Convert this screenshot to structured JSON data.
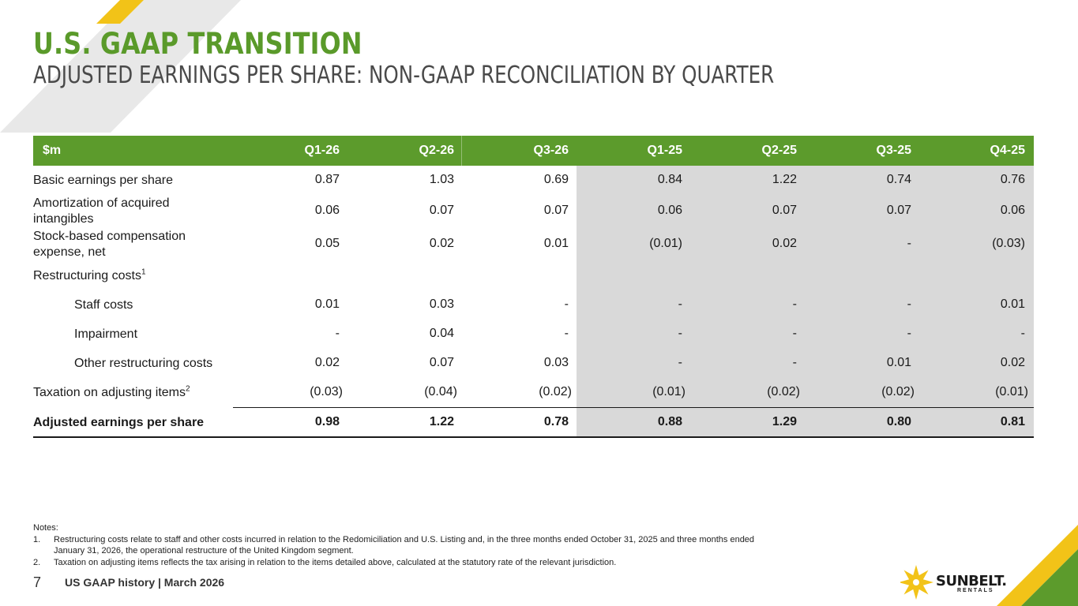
{
  "header": {
    "title": "U.S. GAAP TRANSITION",
    "subtitle": "ADJUSTED EARNINGS PER SHARE: NON-GAAP RECONCILIATION BY QUARTER"
  },
  "colors": {
    "accent_green": "#5c9b2c",
    "title_green": "#5a9a2a",
    "accent_yellow": "#f2c318",
    "shade_gray": "#d9d9d9"
  },
  "table": {
    "columns": [
      "$m",
      "Q1-26",
      "Q2-26",
      "Q3-26",
      "Q1-25",
      "Q2-25",
      "Q3-25",
      "Q4-25"
    ],
    "rows": [
      {
        "label": "Basic earnings per share",
        "values": [
          "0.87",
          "1.03",
          "0.69",
          "0.84",
          "1.22",
          "0.74",
          "0.76"
        ]
      },
      {
        "label_line1": "Amortization of acquired",
        "label_line2": "intangibles",
        "values": [
          "0.06",
          "0.07",
          "0.07",
          "0.06",
          "0.07",
          "0.07",
          "0.06"
        ]
      },
      {
        "label_line1": "Stock-based compensation",
        "label_line2": "expense, net",
        "values": [
          "0.05",
          "0.02",
          "0.01",
          "(0.01)",
          "0.02",
          "-",
          "(0.03)"
        ]
      },
      {
        "label": "Restructuring costs",
        "sup": "1",
        "values": [
          "",
          "",
          "",
          "",
          "",
          "",
          ""
        ]
      },
      {
        "label": "Staff costs",
        "values": [
          "0.01",
          "0.03",
          "-",
          "-",
          "-",
          "-",
          "0.01"
        ]
      },
      {
        "label": "Impairment",
        "values": [
          "-",
          "0.04",
          "-",
          "-",
          "-",
          "-",
          "-"
        ]
      },
      {
        "label": "Other restructuring costs",
        "values": [
          "0.02",
          "0.07",
          "0.03",
          "-",
          "-",
          "0.01",
          "0.02"
        ]
      },
      {
        "label": "Taxation on adjusting items",
        "sup": "2",
        "values": [
          "(0.03)",
          "(0.04)",
          "(0.02)",
          "(0.01)",
          "(0.02)",
          "(0.02)",
          "(0.01)"
        ]
      },
      {
        "label": "Adjusted earnings per share",
        "values": [
          "0.98",
          "1.22",
          "0.78",
          "0.88",
          "1.29",
          "0.80",
          "0.81"
        ]
      }
    ]
  },
  "notes": {
    "heading": "Notes:",
    "items": [
      {
        "num": "1.",
        "line1": "Restructuring costs relate to staff and other costs incurred in relation to the Redomiciliation and U.S. Listing and, in the three months ended October 31, 2025 and three months ended",
        "line2": "January 31, 2026, the operational restructure of the United Kingdom segment."
      },
      {
        "num": "2.",
        "line1": "Taxation on adjusting items reflects the tax arising in relation to the items detailed above, calculated at the statutory rate of the relevant jurisdiction."
      }
    ]
  },
  "footer": {
    "page_number": "7",
    "text": "US GAAP history | March 2026"
  },
  "logo": {
    "icon": "sunbelt-sun-logo-icon",
    "word": "SUNBELT.",
    "sub": "RENTALS"
  }
}
